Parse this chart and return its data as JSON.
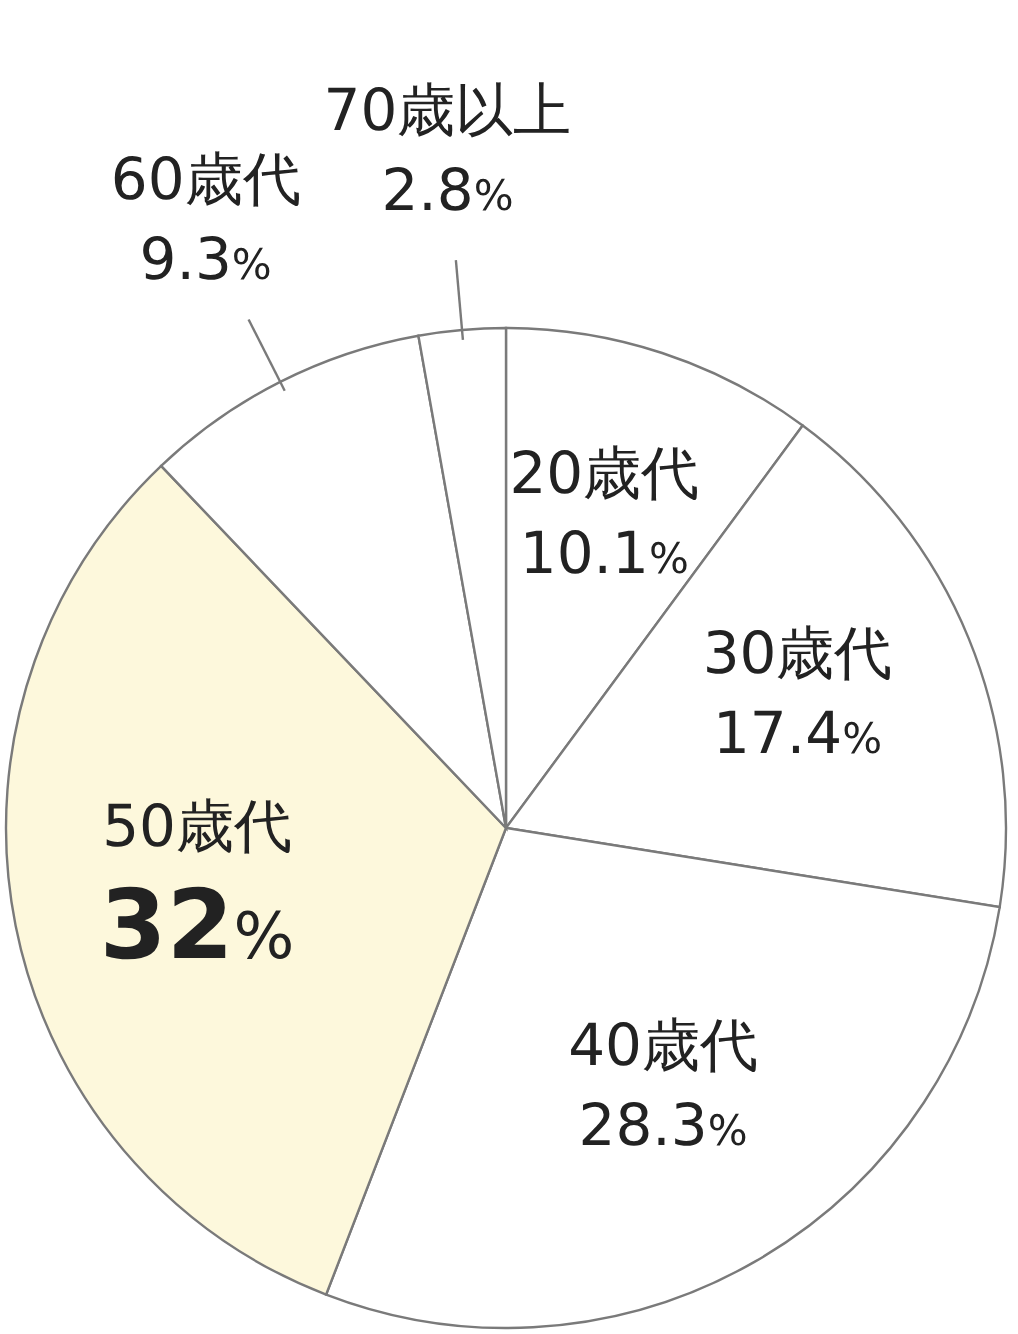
{
  "chart_data": {
    "type": "pie",
    "categories": [
      "20歳代",
      "30歳代",
      "40歳代",
      "50歳代",
      "60歳代",
      "70歳以上"
    ],
    "values": [
      10.1,
      17.4,
      28.3,
      32,
      9.3,
      2.8
    ],
    "value_labels": [
      "10.1%",
      "17.4%",
      "28.3%",
      "32%",
      "9.3%",
      "2.8%"
    ],
    "colors": [
      "#ffffff",
      "#ffffff",
      "#ffffff",
      "#fdf8dc",
      "#ffffff",
      "#ffffff"
    ]
  }
}
